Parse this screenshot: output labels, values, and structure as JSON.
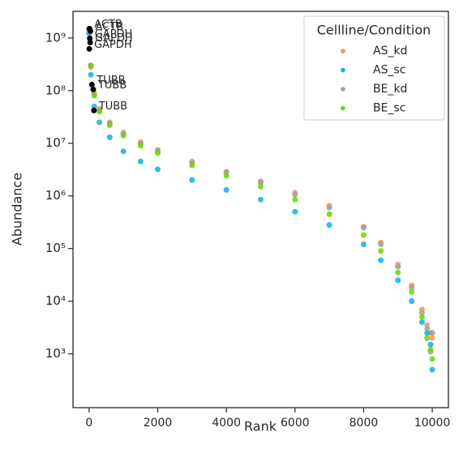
{
  "chart_data": {
    "type": "scatter",
    "x_label": "Rank",
    "y_label": "Abundance",
    "legend_title": "Cellline/Condition",
    "legend_position": "upper right",
    "log_y": true,
    "xlim": [
      -470,
      10470
    ],
    "ylim": [
      95,
      3200000000
    ],
    "xticks": [
      0,
      2000,
      4000,
      6000,
      8000,
      10000
    ],
    "yticks": [
      {
        "value": 1000,
        "label": "10³"
      },
      {
        "value": 10000,
        "label": "10⁴"
      },
      {
        "value": 100000,
        "label": "10⁵"
      },
      {
        "value": 1000000,
        "label": "10⁶"
      },
      {
        "value": 10000000,
        "label": "10⁷"
      },
      {
        "value": 100000000,
        "label": "10⁸"
      },
      {
        "value": 1000000000,
        "label": "10⁹"
      }
    ],
    "x": [
      0,
      50,
      150,
      300,
      600,
      1000,
      1500,
      2000,
      3000,
      4000,
      5000,
      6000,
      7000,
      8000,
      8500,
      9000,
      9400,
      9700,
      9850,
      9950,
      10000
    ],
    "series": [
      {
        "name": "AS_kd",
        "color": "#f5964f",
        "values": [
          1300000000,
          280000000,
          90000000,
          45000000,
          25000000,
          16000000,
          10500000,
          7500000,
          4500000,
          2900000,
          1900000,
          1150000,
          650000,
          260000,
          130000,
          50000,
          20000,
          7000,
          3500,
          2500,
          2000
        ]
      },
      {
        "name": "AS_sc",
        "color": "#0ab0e6",
        "values": [
          1200000000,
          200000000,
          50000000,
          25000000,
          13000000,
          7000000,
          4500000,
          3200000,
          2000000,
          1300000,
          850000,
          500000,
          280000,
          120000,
          60000,
          25000,
          10000,
          4000,
          2500,
          1500,
          500
        ]
      },
      {
        "name": "BE_kd",
        "color": "#a0a0a0",
        "values": [
          1400000000,
          300000000,
          85000000,
          42000000,
          24000000,
          15000000,
          10000000,
          7200000,
          4300000,
          2800000,
          1800000,
          1050000,
          600000,
          250000,
          120000,
          45000,
          18000,
          6000,
          3000,
          1100,
          2500
        ]
      },
      {
        "name": "BE_sc",
        "color": "#6ad600",
        "values": [
          1500000000,
          300000000,
          80000000,
          40000000,
          22000000,
          14000000,
          9000000,
          6500000,
          3800000,
          2400000,
          1500000,
          850000,
          450000,
          180000,
          90000,
          35000,
          15000,
          5000,
          2000,
          1200,
          800
        ]
      }
    ],
    "annotations": [
      {
        "text": "ACTB",
        "x": 10,
        "y": 1500000000
      },
      {
        "text": "ACTB",
        "x": 40,
        "y": 1350000000
      },
      {
        "text": "GAPDH",
        "x": 20,
        "y": 980000000
      },
      {
        "text": "GAPDH",
        "x": 30,
        "y": 820000000
      },
      {
        "text": "GAPDH",
        "x": 5,
        "y": 620000000
      },
      {
        "text": "TUBB",
        "x": 80,
        "y": 130000000
      },
      {
        "text": "TUBB",
        "x": 120,
        "y": 105000000
      },
      {
        "text": "TUBB",
        "x": 140,
        "y": 42000000
      }
    ]
  }
}
